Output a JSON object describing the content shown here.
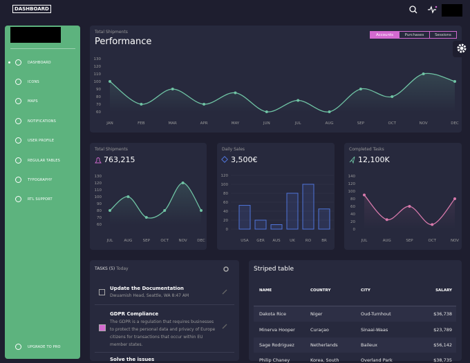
{
  "navbar": {
    "brand": "DASHBOARD"
  },
  "sidebar": {
    "items": [
      "DASHBOARD",
      "ICONS",
      "MAPS",
      "NOTIFICATIONS",
      "USER PROFILE",
      "REGULAR TABLES",
      "TYPOGRAPHY",
      "RTL SUPPORT"
    ],
    "footer": "UPGRADE TO PRO"
  },
  "chart_data": [
    {
      "type": "line",
      "subtitle": "Total Shipments",
      "title": "Performance",
      "tabs": [
        "Accounts",
        "Purchases",
        "Sessions"
      ],
      "categories": [
        "JAN",
        "FEB",
        "MAR",
        "APR",
        "MAY",
        "JUN",
        "JUL",
        "AUG",
        "SEP",
        "OCT",
        "NOV",
        "DEC"
      ],
      "values": [
        100,
        70,
        90,
        70,
        85,
        60,
        75,
        60,
        90,
        80,
        110,
        100
      ],
      "color": "#6fc3a4",
      "ylim": [
        60,
        130
      ],
      "yticks": [
        60,
        70,
        80,
        90,
        100,
        110,
        120,
        130
      ]
    },
    {
      "type": "line",
      "subtitle": "Total Shipments",
      "title": "763,215",
      "categories": [
        "JUL",
        "AUG",
        "SEP",
        "OCT",
        "NOV",
        "DEC"
      ],
      "values": [
        80,
        100,
        70,
        80,
        120,
        80
      ],
      "color": "#6fc3a4",
      "ylim": [
        60,
        130
      ],
      "yticks": [
        60,
        70,
        80,
        90,
        100,
        110,
        120,
        130
      ]
    },
    {
      "type": "bar",
      "subtitle": "Daily Sales",
      "title": "3,500€",
      "categories": [
        "USA",
        "GER",
        "AUS",
        "UK",
        "RO",
        "BR"
      ],
      "values": [
        53,
        20,
        10,
        80,
        100,
        45
      ],
      "color": "#4f74d9",
      "ylim": [
        0,
        120
      ],
      "yticks": [
        0,
        20,
        40,
        60,
        80,
        100,
        120
      ]
    },
    {
      "type": "line",
      "subtitle": "Completed Tasks",
      "title": "12,100K",
      "categories": [
        "JUL",
        "AUG",
        "SEP",
        "OCT",
        "NOV"
      ],
      "values": [
        90,
        25,
        60,
        12,
        80
      ],
      "color": "#d779ab",
      "ylim": [
        0,
        140
      ],
      "yticks": [
        0,
        20,
        40,
        60,
        80,
        100,
        120,
        140
      ]
    }
  ],
  "tasks": {
    "title": "TASKS (5)",
    "subtitle": "Today",
    "items": [
      {
        "title": "Update the Documentation",
        "text": "Dwuamish Head, Seattle, WA 8:47 AM"
      },
      {
        "title": "GDPR Compliance",
        "text": "The GDPR is a regulation that requires businesses to protect the personal data and privacy of Europe citizens for transactions that occur within EU member states."
      },
      {
        "title": "Solve the issues"
      }
    ]
  },
  "table": {
    "title": "Striped table",
    "headers": [
      "NAME",
      "COUNTRY",
      "CITY",
      "SALARY"
    ],
    "rows": [
      [
        "Dakota Rice",
        "Niger",
        "Oud-Turnhout",
        "$36,738"
      ],
      [
        "Minerva Hooper",
        "Curaçao",
        "Sinaai-Waas",
        "$23,789"
      ],
      [
        "Sage Rodriguez",
        "Netherlands",
        "Baileux",
        "$56,142"
      ],
      [
        "Philip Chaney",
        "Korea, South",
        "Overland Park",
        "$38,735"
      ]
    ]
  }
}
